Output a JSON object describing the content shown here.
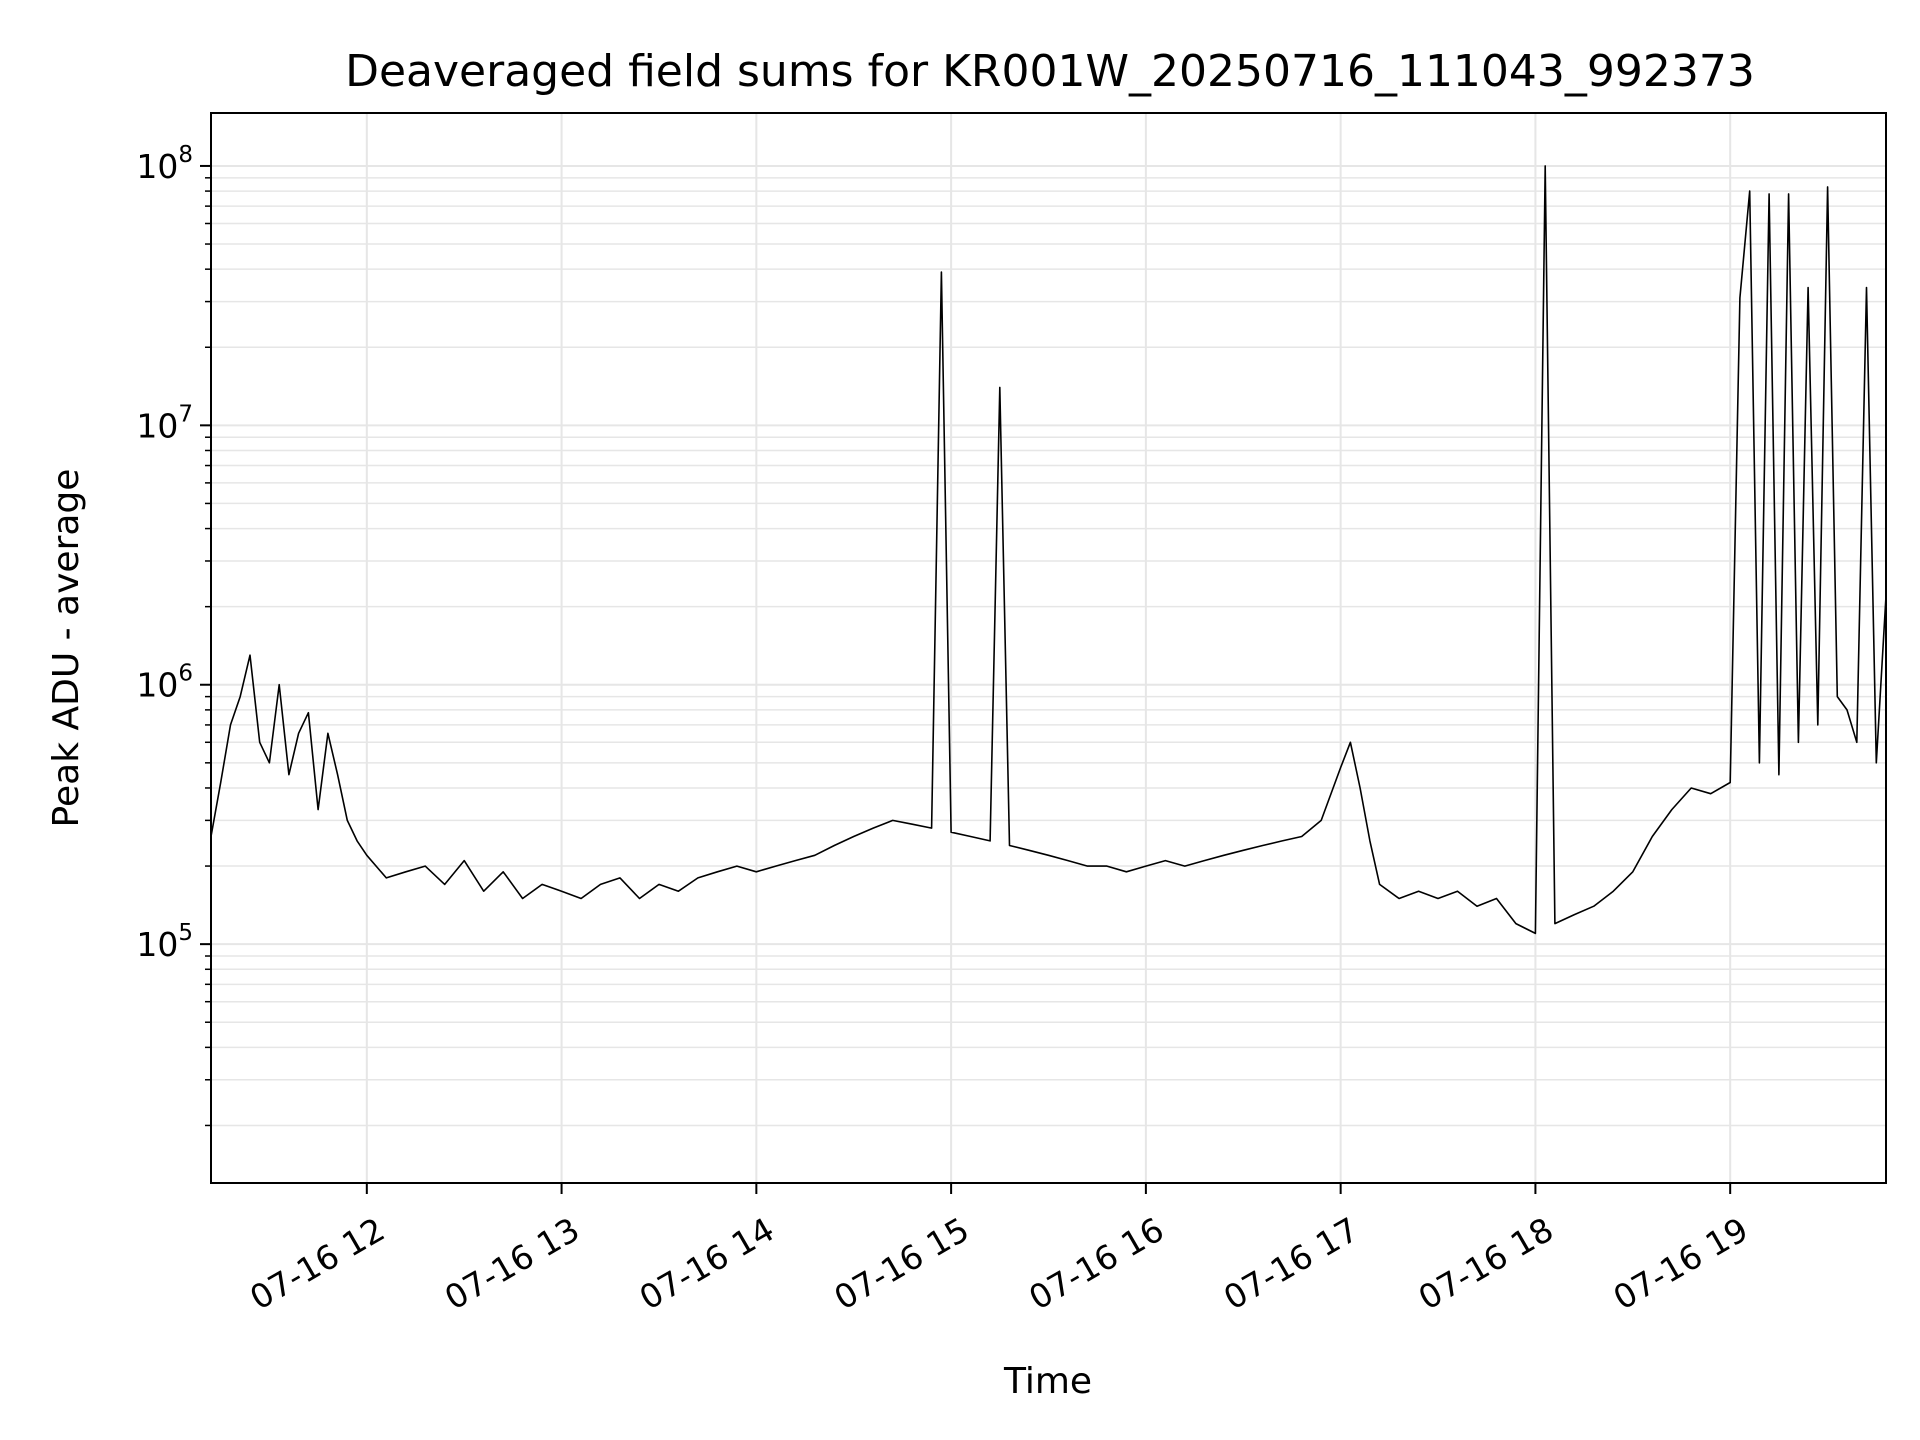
{
  "chart_data": {
    "type": "line",
    "title": "Deaveraged field sums for KR001W_20250716_111043_992373",
    "xlabel": "Time",
    "ylabel": "Peak ADU - average",
    "y_scale": "log",
    "ylim": [
      12000,
      160000000
    ],
    "xlim": [
      "2025-07-16 11:12",
      "2025-07-16 19:48"
    ],
    "grid": true,
    "line_color": "#000000",
    "grid_color": "#e6e6e6",
    "x_ticks": [
      {
        "value": "2025-07-16 12:00",
        "label": "07-16 12"
      },
      {
        "value": "2025-07-16 13:00",
        "label": "07-16 13"
      },
      {
        "value": "2025-07-16 14:00",
        "label": "07-16 14"
      },
      {
        "value": "2025-07-16 15:00",
        "label": "07-16 15"
      },
      {
        "value": "2025-07-16 16:00",
        "label": "07-16 16"
      },
      {
        "value": "2025-07-16 17:00",
        "label": "07-16 17"
      },
      {
        "value": "2025-07-16 18:00",
        "label": "07-16 18"
      },
      {
        "value": "2025-07-16 19:00",
        "label": "07-16 19"
      }
    ],
    "y_ticks": [
      {
        "value": 100000,
        "base": "10",
        "exp": "5"
      },
      {
        "value": 1000000,
        "base": "10",
        "exp": "6"
      },
      {
        "value": 10000000,
        "base": "10",
        "exp": "7"
      },
      {
        "value": 100000000,
        "base": "10",
        "exp": "8"
      }
    ],
    "series": [
      {
        "points": [
          [
            "2025-07-16 11:12",
            260000
          ],
          [
            "2025-07-16 11:15",
            420000
          ],
          [
            "2025-07-16 11:18",
            700000
          ],
          [
            "2025-07-16 11:21",
            900000
          ],
          [
            "2025-07-16 11:24",
            1300000
          ],
          [
            "2025-07-16 11:27",
            600000
          ],
          [
            "2025-07-16 11:30",
            500000
          ],
          [
            "2025-07-16 11:33",
            1000000
          ],
          [
            "2025-07-16 11:36",
            450000
          ],
          [
            "2025-07-16 11:39",
            650000
          ],
          [
            "2025-07-16 11:42",
            780000
          ],
          [
            "2025-07-16 11:45",
            330000
          ],
          [
            "2025-07-16 11:48",
            650000
          ],
          [
            "2025-07-16 11:51",
            450000
          ],
          [
            "2025-07-16 11:54",
            300000
          ],
          [
            "2025-07-16 11:57",
            250000
          ],
          [
            "2025-07-16 12:00",
            220000
          ],
          [
            "2025-07-16 12:06",
            180000
          ],
          [
            "2025-07-16 12:12",
            190000
          ],
          [
            "2025-07-16 12:18",
            200000
          ],
          [
            "2025-07-16 12:24",
            170000
          ],
          [
            "2025-07-16 12:30",
            210000
          ],
          [
            "2025-07-16 12:36",
            160000
          ],
          [
            "2025-07-16 12:42",
            190000
          ],
          [
            "2025-07-16 12:48",
            150000
          ],
          [
            "2025-07-16 12:54",
            170000
          ],
          [
            "2025-07-16 13:00",
            160000
          ],
          [
            "2025-07-16 13:06",
            150000
          ],
          [
            "2025-07-16 13:12",
            170000
          ],
          [
            "2025-07-16 13:18",
            180000
          ],
          [
            "2025-07-16 13:24",
            150000
          ],
          [
            "2025-07-16 13:30",
            170000
          ],
          [
            "2025-07-16 13:36",
            160000
          ],
          [
            "2025-07-16 13:42",
            180000
          ],
          [
            "2025-07-16 13:48",
            190000
          ],
          [
            "2025-07-16 13:54",
            200000
          ],
          [
            "2025-07-16 14:00",
            190000
          ],
          [
            "2025-07-16 14:06",
            200000
          ],
          [
            "2025-07-16 14:12",
            210000
          ],
          [
            "2025-07-16 14:18",
            220000
          ],
          [
            "2025-07-16 14:24",
            240000
          ],
          [
            "2025-07-16 14:30",
            260000
          ],
          [
            "2025-07-16 14:36",
            280000
          ],
          [
            "2025-07-16 14:42",
            300000
          ],
          [
            "2025-07-16 14:48",
            290000
          ],
          [
            "2025-07-16 14:54",
            280000
          ],
          [
            "2025-07-16 14:57",
            39000000
          ],
          [
            "2025-07-16 15:00",
            270000
          ],
          [
            "2025-07-16 15:06",
            260000
          ],
          [
            "2025-07-16 15:12",
            250000
          ],
          [
            "2025-07-16 15:15",
            14000000
          ],
          [
            "2025-07-16 15:18",
            240000
          ],
          [
            "2025-07-16 15:24",
            230000
          ],
          [
            "2025-07-16 15:30",
            220000
          ],
          [
            "2025-07-16 15:36",
            210000
          ],
          [
            "2025-07-16 15:42",
            200000
          ],
          [
            "2025-07-16 15:48",
            200000
          ],
          [
            "2025-07-16 15:54",
            190000
          ],
          [
            "2025-07-16 16:00",
            200000
          ],
          [
            "2025-07-16 16:06",
            210000
          ],
          [
            "2025-07-16 16:12",
            200000
          ],
          [
            "2025-07-16 16:18",
            210000
          ],
          [
            "2025-07-16 16:24",
            220000
          ],
          [
            "2025-07-16 16:30",
            230000
          ],
          [
            "2025-07-16 16:36",
            240000
          ],
          [
            "2025-07-16 16:42",
            250000
          ],
          [
            "2025-07-16 16:48",
            260000
          ],
          [
            "2025-07-16 16:54",
            300000
          ],
          [
            "2025-07-16 17:00",
            480000
          ],
          [
            "2025-07-16 17:03",
            600000
          ],
          [
            "2025-07-16 17:06",
            400000
          ],
          [
            "2025-07-16 17:09",
            250000
          ],
          [
            "2025-07-16 17:12",
            170000
          ],
          [
            "2025-07-16 17:18",
            150000
          ],
          [
            "2025-07-16 17:24",
            160000
          ],
          [
            "2025-07-16 17:30",
            150000
          ],
          [
            "2025-07-16 17:36",
            160000
          ],
          [
            "2025-07-16 17:42",
            140000
          ],
          [
            "2025-07-16 17:48",
            150000
          ],
          [
            "2025-07-16 17:54",
            120000
          ],
          [
            "2025-07-16 18:00",
            110000
          ],
          [
            "2025-07-16 18:03",
            100000000
          ],
          [
            "2025-07-16 18:06",
            120000
          ],
          [
            "2025-07-16 18:12",
            130000
          ],
          [
            "2025-07-16 18:18",
            140000
          ],
          [
            "2025-07-16 18:24",
            160000
          ],
          [
            "2025-07-16 18:30",
            190000
          ],
          [
            "2025-07-16 18:36",
            260000
          ],
          [
            "2025-07-16 18:42",
            330000
          ],
          [
            "2025-07-16 18:48",
            400000
          ],
          [
            "2025-07-16 18:54",
            380000
          ],
          [
            "2025-07-16 19:00",
            420000
          ],
          [
            "2025-07-16 19:03",
            31000000
          ],
          [
            "2025-07-16 19:06",
            80000000
          ],
          [
            "2025-07-16 19:09",
            500000
          ],
          [
            "2025-07-16 19:12",
            78000000
          ],
          [
            "2025-07-16 19:15",
            450000
          ],
          [
            "2025-07-16 19:18",
            78000000
          ],
          [
            "2025-07-16 19:21",
            600000
          ],
          [
            "2025-07-16 19:24",
            34000000
          ],
          [
            "2025-07-16 19:27",
            700000
          ],
          [
            "2025-07-16 19:30",
            83000000
          ],
          [
            "2025-07-16 19:33",
            900000
          ],
          [
            "2025-07-16 19:36",
            800000
          ],
          [
            "2025-07-16 19:39",
            600000
          ],
          [
            "2025-07-16 19:42",
            34000000
          ],
          [
            "2025-07-16 19:45",
            500000
          ],
          [
            "2025-07-16 19:48",
            2200000
          ]
        ]
      }
    ]
  }
}
